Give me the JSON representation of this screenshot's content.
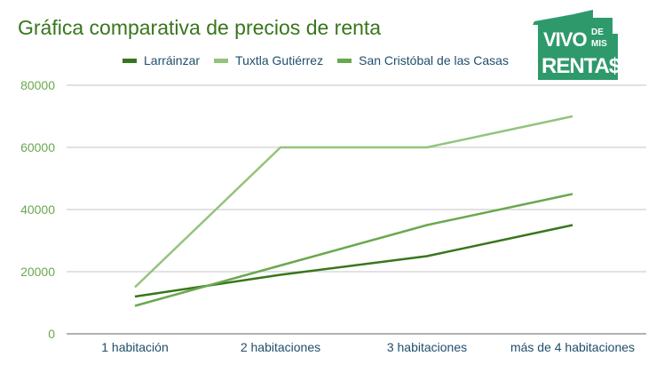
{
  "chart_data": {
    "type": "line",
    "title": "Gráfica comparativa de precios de renta",
    "categories": [
      "1 habitación",
      "2 habitaciones",
      "3 habitaciones",
      "más de 4 habitaciones"
    ],
    "series": [
      {
        "name": "Larráinzar",
        "values": [
          12000,
          19000,
          25000,
          35000
        ],
        "color": "#38761d"
      },
      {
        "name": "Tuxtla Gutiérrez",
        "values": [
          15000,
          60000,
          60000,
          70000
        ],
        "color": "#93c47d"
      },
      {
        "name": "San Cristóbal de las Casas",
        "values": [
          9000,
          22000,
          35000,
          45000
        ],
        "color": "#6aa84f"
      }
    ],
    "ylim": [
      0,
      80000
    ],
    "yticks": [
      "0",
      "20000",
      "40000",
      "60000",
      "80000"
    ],
    "grid": true,
    "legend": "top"
  },
  "logo": {
    "text": "VIVO DE MIS RENTA$",
    "color": "#2e9a6c"
  }
}
